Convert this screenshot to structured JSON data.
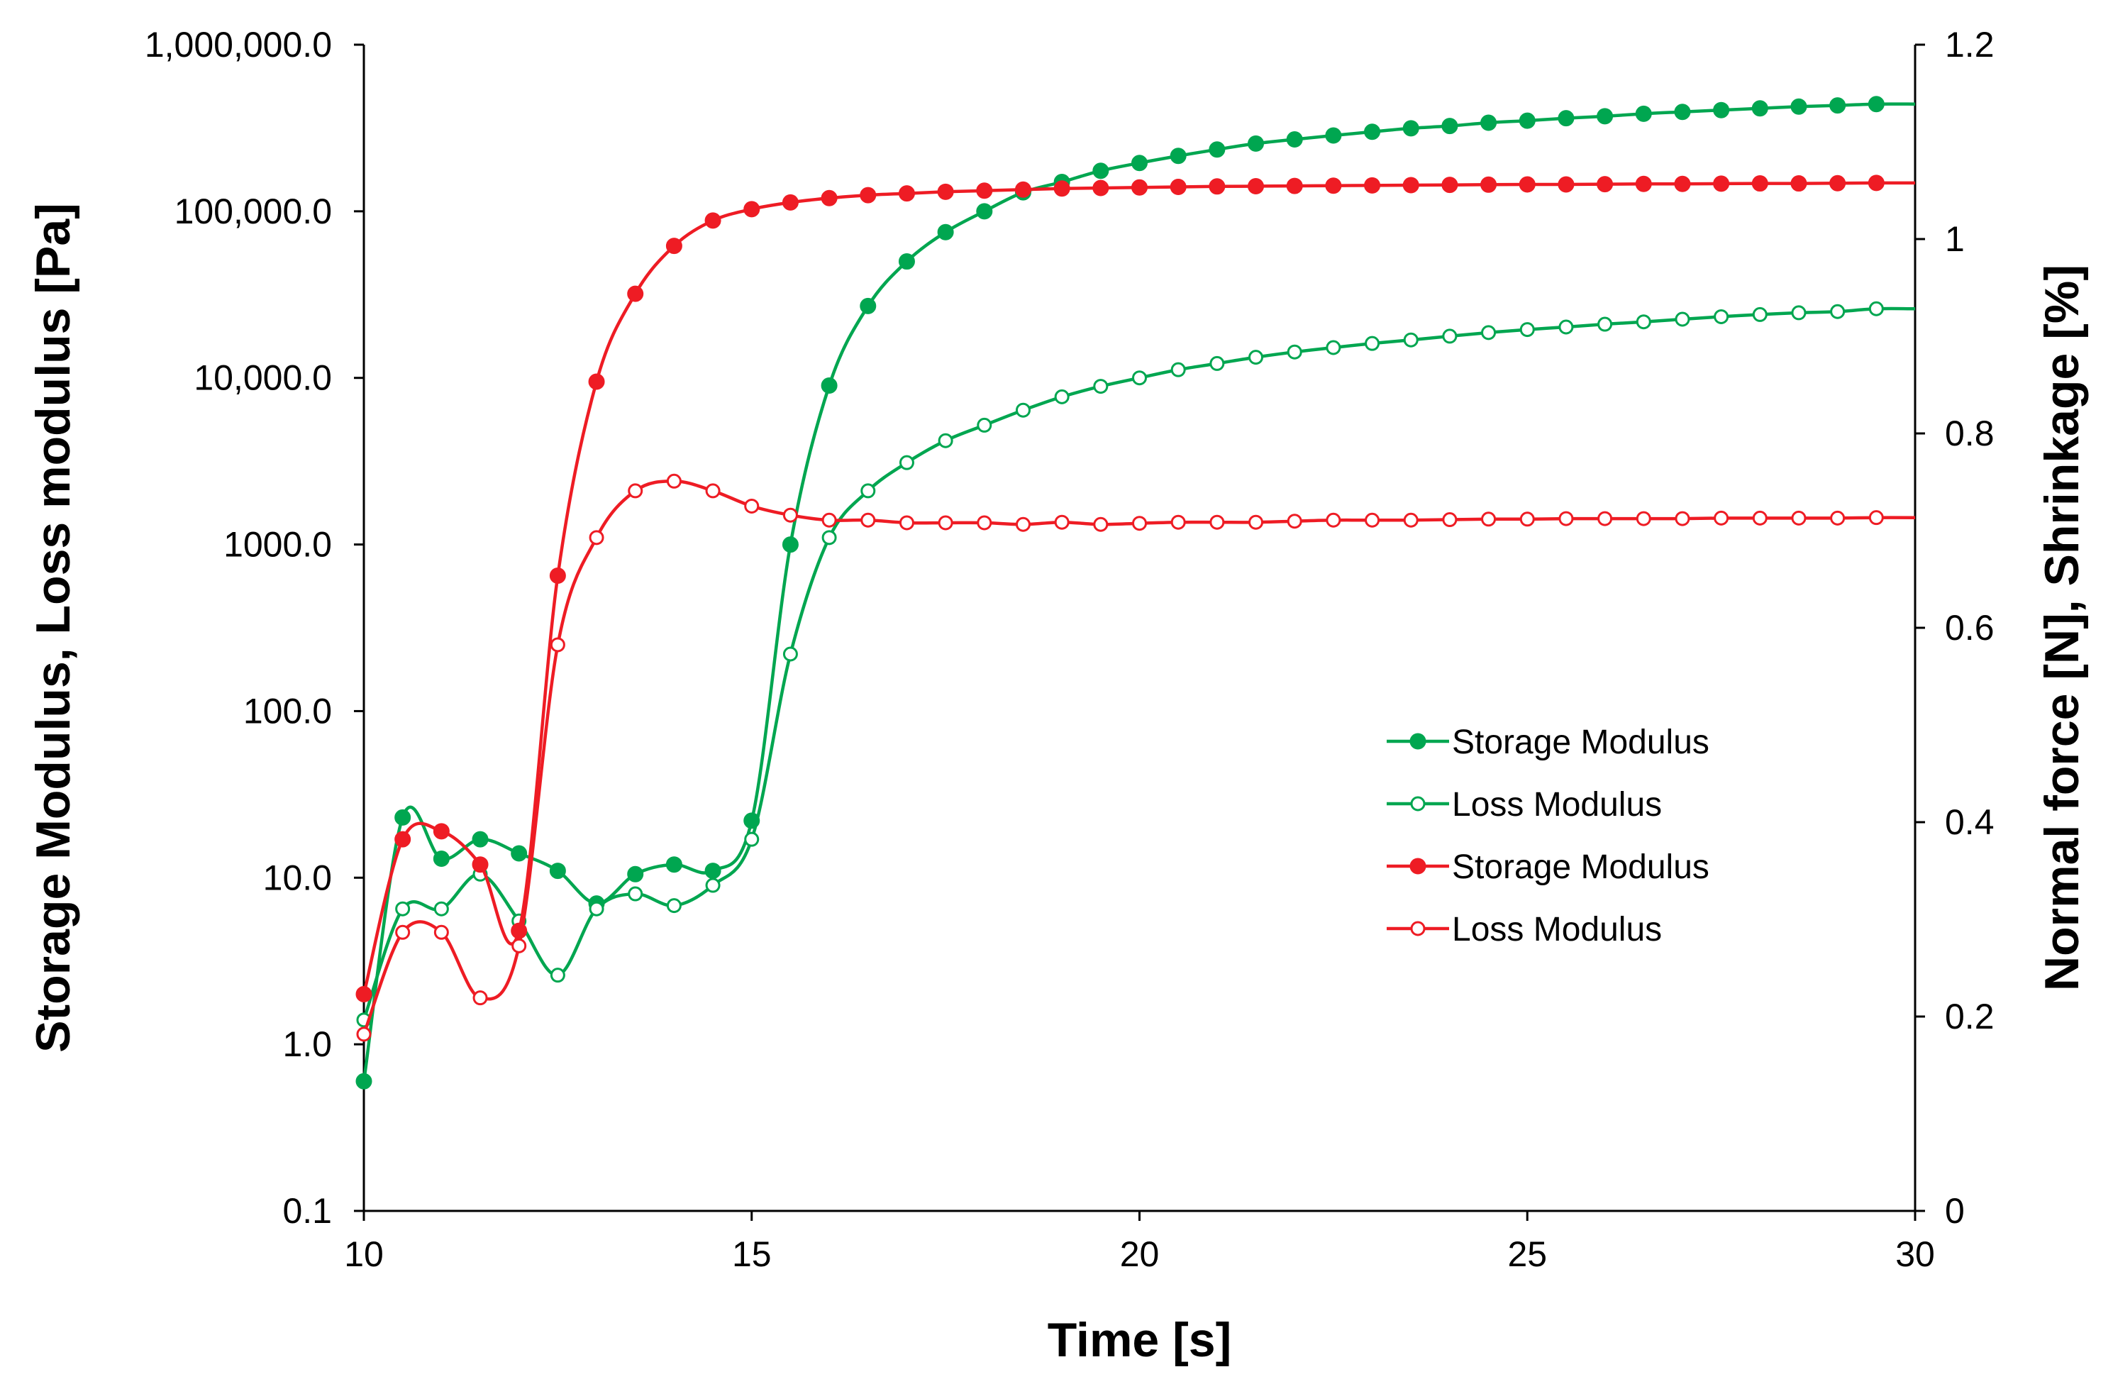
{
  "chart_data": {
    "type": "line",
    "title": "",
    "xlabel": "Time [s]",
    "ylabel": "Storage Modulus, Loss modulus [Pa]",
    "y2label": "Normal force [N], Shrinkage [%]",
    "xlim": [
      10,
      30
    ],
    "xticks": [
      10,
      15,
      20,
      25,
      30
    ],
    "x_tick_labels": [
      "10",
      "15",
      "20",
      "25",
      "30"
    ],
    "y_scale": "log",
    "ylim": [
      0.1,
      1000000
    ],
    "yticks": [
      0.1,
      1,
      10,
      100,
      1000,
      10000,
      100000,
      1000000
    ],
    "y_tick_labels": [
      "0.1",
      "1.0",
      "10.0",
      "100.0",
      "1000.0",
      "10,000.0",
      "100,000.0",
      "1,000,000.0"
    ],
    "y2lim": [
      0,
      1.2
    ],
    "y2ticks": [
      0,
      0.2,
      0.4,
      0.6,
      0.8,
      1.0,
      1.2
    ],
    "y2_tick_labels": [
      "0",
      "0.2",
      "0.4",
      "0.6",
      "0.8",
      "1",
      "1.2"
    ],
    "grid": false,
    "legend_position": "center-right",
    "series": [
      {
        "name": "Storage Modulus",
        "color": "#00a650",
        "marker": "filled-circle",
        "x": [
          10,
          10.5,
          11,
          11.5,
          12,
          12.5,
          13,
          13.5,
          14,
          14.5,
          15,
          15.5,
          16,
          16.5,
          17,
          17.5,
          18,
          18.5,
          19,
          19.5,
          20,
          20.5,
          21,
          21.5,
          22,
          22.5,
          23,
          23.5,
          24,
          24.5,
          25,
          25.5,
          26,
          26.5,
          27,
          27.5,
          28,
          28.5,
          29,
          29.5
        ],
        "y": [
          0.6,
          23,
          13,
          17,
          14,
          11,
          7,
          10.5,
          12,
          11,
          22,
          1000,
          9000,
          27000,
          50000,
          75000,
          100000,
          130000,
          150000,
          175000,
          195000,
          215000,
          235000,
          255000,
          270000,
          285000,
          300000,
          315000,
          325000,
          340000,
          350000,
          362000,
          372000,
          385000,
          395000,
          405000,
          415000,
          425000,
          432000,
          440000
        ]
      },
      {
        "name": "Loss Modulus",
        "color": "#00a650",
        "marker": "open-circle",
        "x": [
          10,
          10.5,
          11,
          11.5,
          12,
          12.5,
          13,
          13.5,
          14,
          14.5,
          15,
          15.5,
          16,
          16.5,
          17,
          17.5,
          18,
          18.5,
          19,
          19.5,
          20,
          20.5,
          21,
          21.5,
          22,
          22.5,
          23,
          23.5,
          24,
          24.5,
          25,
          25.5,
          26,
          26.5,
          27,
          27.5,
          28,
          28.5,
          29,
          29.5
        ],
        "y": [
          1.4,
          6.5,
          6.5,
          10.5,
          5.5,
          2.6,
          6.5,
          8,
          6.8,
          9,
          17,
          220,
          1100,
          2100,
          3100,
          4200,
          5200,
          6400,
          7700,
          8900,
          10000,
          11200,
          12200,
          13300,
          14300,
          15200,
          16100,
          16900,
          17800,
          18700,
          19500,
          20200,
          21000,
          21700,
          22500,
          23300,
          24000,
          24600,
          25000,
          26000
        ]
      },
      {
        "name": "Storage Modulus",
        "color": "#ee1c24",
        "marker": "filled-circle",
        "x": [
          10,
          10.5,
          11,
          11.5,
          12,
          12.5,
          13,
          13.5,
          14,
          14.5,
          15,
          15.5,
          16,
          16.5,
          17,
          17.5,
          18,
          18.5,
          19,
          19.5,
          20,
          20.5,
          21,
          21.5,
          22,
          22.5,
          23,
          23.5,
          24,
          24.5,
          25,
          25.5,
          26,
          26.5,
          27,
          27.5,
          28,
          28.5,
          29,
          29.5
        ],
        "y": [
          2,
          17,
          19,
          12,
          4.8,
          650,
          9500,
          32000,
          62000,
          88000,
          103000,
          113000,
          120000,
          125000,
          128000,
          131000,
          133000,
          135000,
          137000,
          138000,
          139000,
          140000,
          141000,
          141500,
          142000,
          142500,
          143000,
          143500,
          144000,
          144500,
          145000,
          145000,
          145500,
          146000,
          146000,
          146500,
          147000,
          147000,
          147500,
          148000
        ]
      },
      {
        "name": "Loss Modulus",
        "color": "#ee1c24",
        "marker": "open-circle",
        "x": [
          10,
          10.5,
          11,
          11.5,
          12,
          12.5,
          13,
          13.5,
          14,
          14.5,
          15,
          15.5,
          16,
          16.5,
          17,
          17.5,
          18,
          18.5,
          19,
          19.5,
          20,
          20.5,
          21,
          21.5,
          22,
          22.5,
          23,
          23.5,
          24,
          24.5,
          25,
          25.5,
          26,
          26.5,
          27,
          27.5,
          28,
          28.5,
          29,
          29.5
        ],
        "y": [
          1.15,
          4.7,
          4.7,
          1.9,
          3.9,
          250,
          1100,
          2100,
          2400,
          2100,
          1700,
          1500,
          1400,
          1400,
          1350,
          1350,
          1350,
          1320,
          1360,
          1320,
          1340,
          1360,
          1360,
          1360,
          1380,
          1400,
          1400,
          1400,
          1410,
          1420,
          1420,
          1430,
          1430,
          1430,
          1430,
          1440,
          1440,
          1440,
          1440,
          1450
        ]
      }
    ]
  }
}
